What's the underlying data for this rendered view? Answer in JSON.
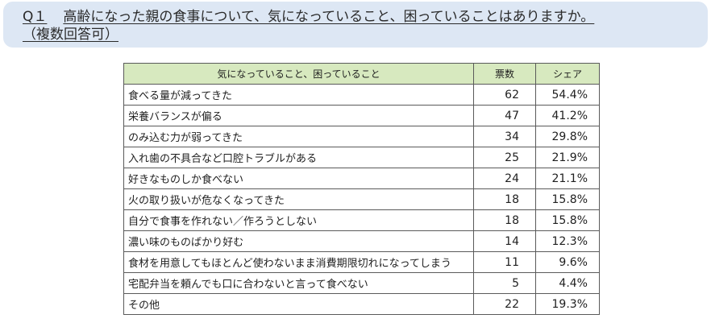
{
  "question": {
    "number": "Q１",
    "text": "高齢になった親の食事について、気になっていること、困っていることはありますか。",
    "note": "（複数回答可）"
  },
  "table": {
    "headers": [
      "気になっていること、困っていること",
      "票数",
      "シェア"
    ],
    "rows": [
      {
        "label": "食べる量が減ってきた",
        "votes": "62",
        "share": "54.4%"
      },
      {
        "label": "栄養バランスが偏る",
        "votes": "47",
        "share": "41.2%"
      },
      {
        "label": "のみ込む力が弱ってきた",
        "votes": "34",
        "share": "29.8%"
      },
      {
        "label": "入れ歯の不具合など口腔トラブルがある",
        "votes": "25",
        "share": "21.9%"
      },
      {
        "label": "好きなものしか食べない",
        "votes": "24",
        "share": "21.1%"
      },
      {
        "label": "火の取り扱いが危なくなってきた",
        "votes": "18",
        "share": "15.8%"
      },
      {
        "label": "自分で食事を作れない／作ろうとしない",
        "votes": "18",
        "share": "15.8%"
      },
      {
        "label": "濃い味のものばかり好む",
        "votes": "14",
        "share": "12.3%"
      },
      {
        "label": "食材を用意してもほとんど使わないまま消費期限切れになってしまう",
        "votes": "11",
        "share": "9.6%"
      },
      {
        "label": "宅配弁当を頼んでも口に合わないと言って食べない",
        "votes": "5",
        "share": "4.4%"
      },
      {
        "label": "その他",
        "votes": "22",
        "share": "19.3%"
      }
    ]
  }
}
